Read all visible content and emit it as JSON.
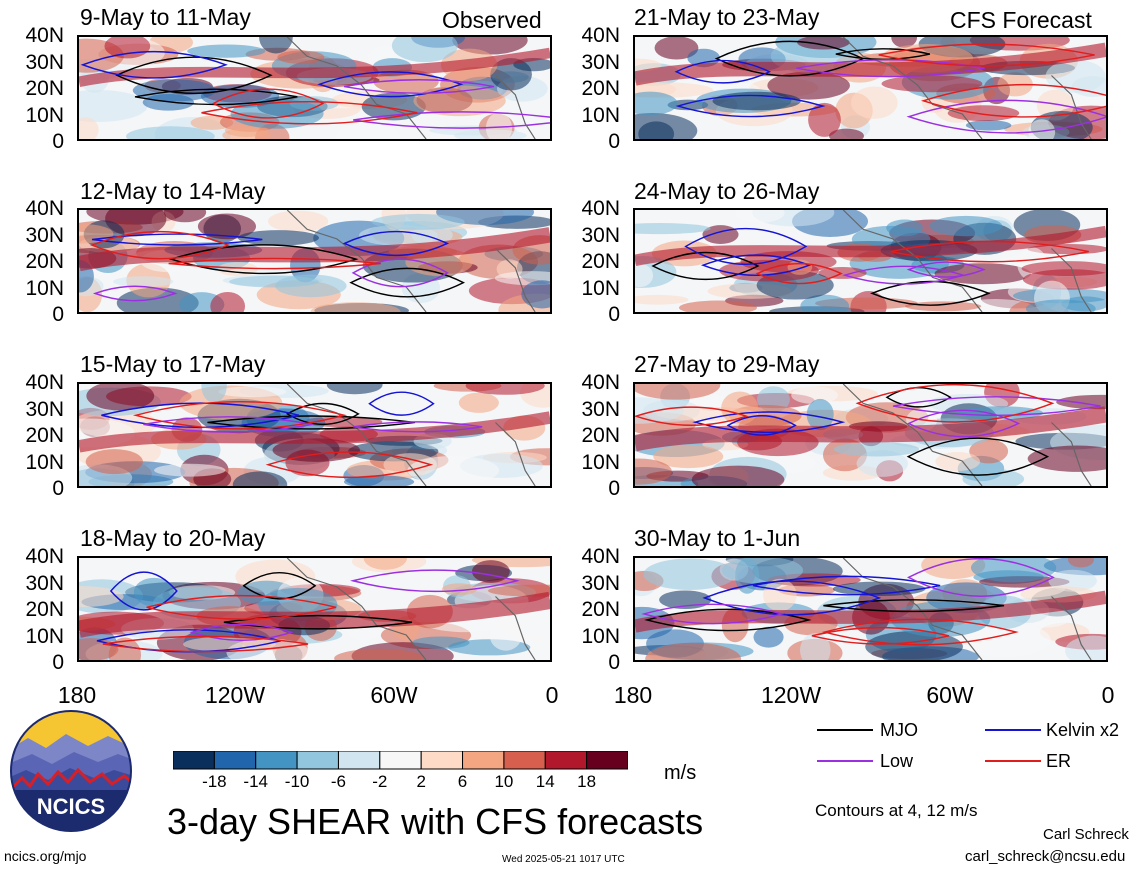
{
  "chart_data": {
    "type": "heatmap",
    "title": "3-day SHEAR with CFS forecasts",
    "observed_label": "Observed",
    "forecast_label": "CFS Forecast",
    "units": "m/s",
    "contour_note": "Contours at 4, 12 m/s",
    "x_ticks": [
      "180",
      "120W",
      "60W",
      "0"
    ],
    "y_ticks": [
      "40N",
      "30N",
      "20N",
      "10N",
      "0"
    ],
    "xlim": [
      -180,
      0
    ],
    "ylim": [
      0,
      40
    ],
    "panels": [
      {
        "title": "9-May to 11-May",
        "kind": "observed"
      },
      {
        "title": "12-May to 14-May",
        "kind": "observed"
      },
      {
        "title": "15-May to 17-May",
        "kind": "observed"
      },
      {
        "title": "18-May to 20-May",
        "kind": "observed"
      },
      {
        "title": "21-May to 23-May",
        "kind": "forecast"
      },
      {
        "title": "24-May to 26-May",
        "kind": "forecast"
      },
      {
        "title": "27-May to 29-May",
        "kind": "forecast"
      },
      {
        "title": "30-May to 1-Jun",
        "kind": "forecast"
      }
    ],
    "colorbar": {
      "labels": [
        "-18",
        "-14",
        "-10",
        "-6",
        "-2",
        "2",
        "6",
        "10",
        "14",
        "18"
      ],
      "colors": [
        "#0b2f5c",
        "#2166ac",
        "#4393c3",
        "#92c5de",
        "#d1e5f0",
        "#f7f7f7",
        "#fddbc7",
        "#f4a582",
        "#d6604d",
        "#b2182b",
        "#67001f"
      ]
    },
    "legend": [
      {
        "name": "MJO",
        "color": "#000000"
      },
      {
        "name": "Kelvin x2",
        "color": "#1414d2"
      },
      {
        "name": "Low",
        "color": "#9b30e0"
      },
      {
        "name": "ER",
        "color": "#e01e1e"
      }
    ]
  },
  "footer": {
    "logo_text": "NCICS",
    "url": "ncics.org/mjo",
    "timestamp": "Wed 2025-05-21 1017 UTC",
    "author": "Carl Schreck",
    "email": "carl_schreck@ncsu.edu"
  }
}
